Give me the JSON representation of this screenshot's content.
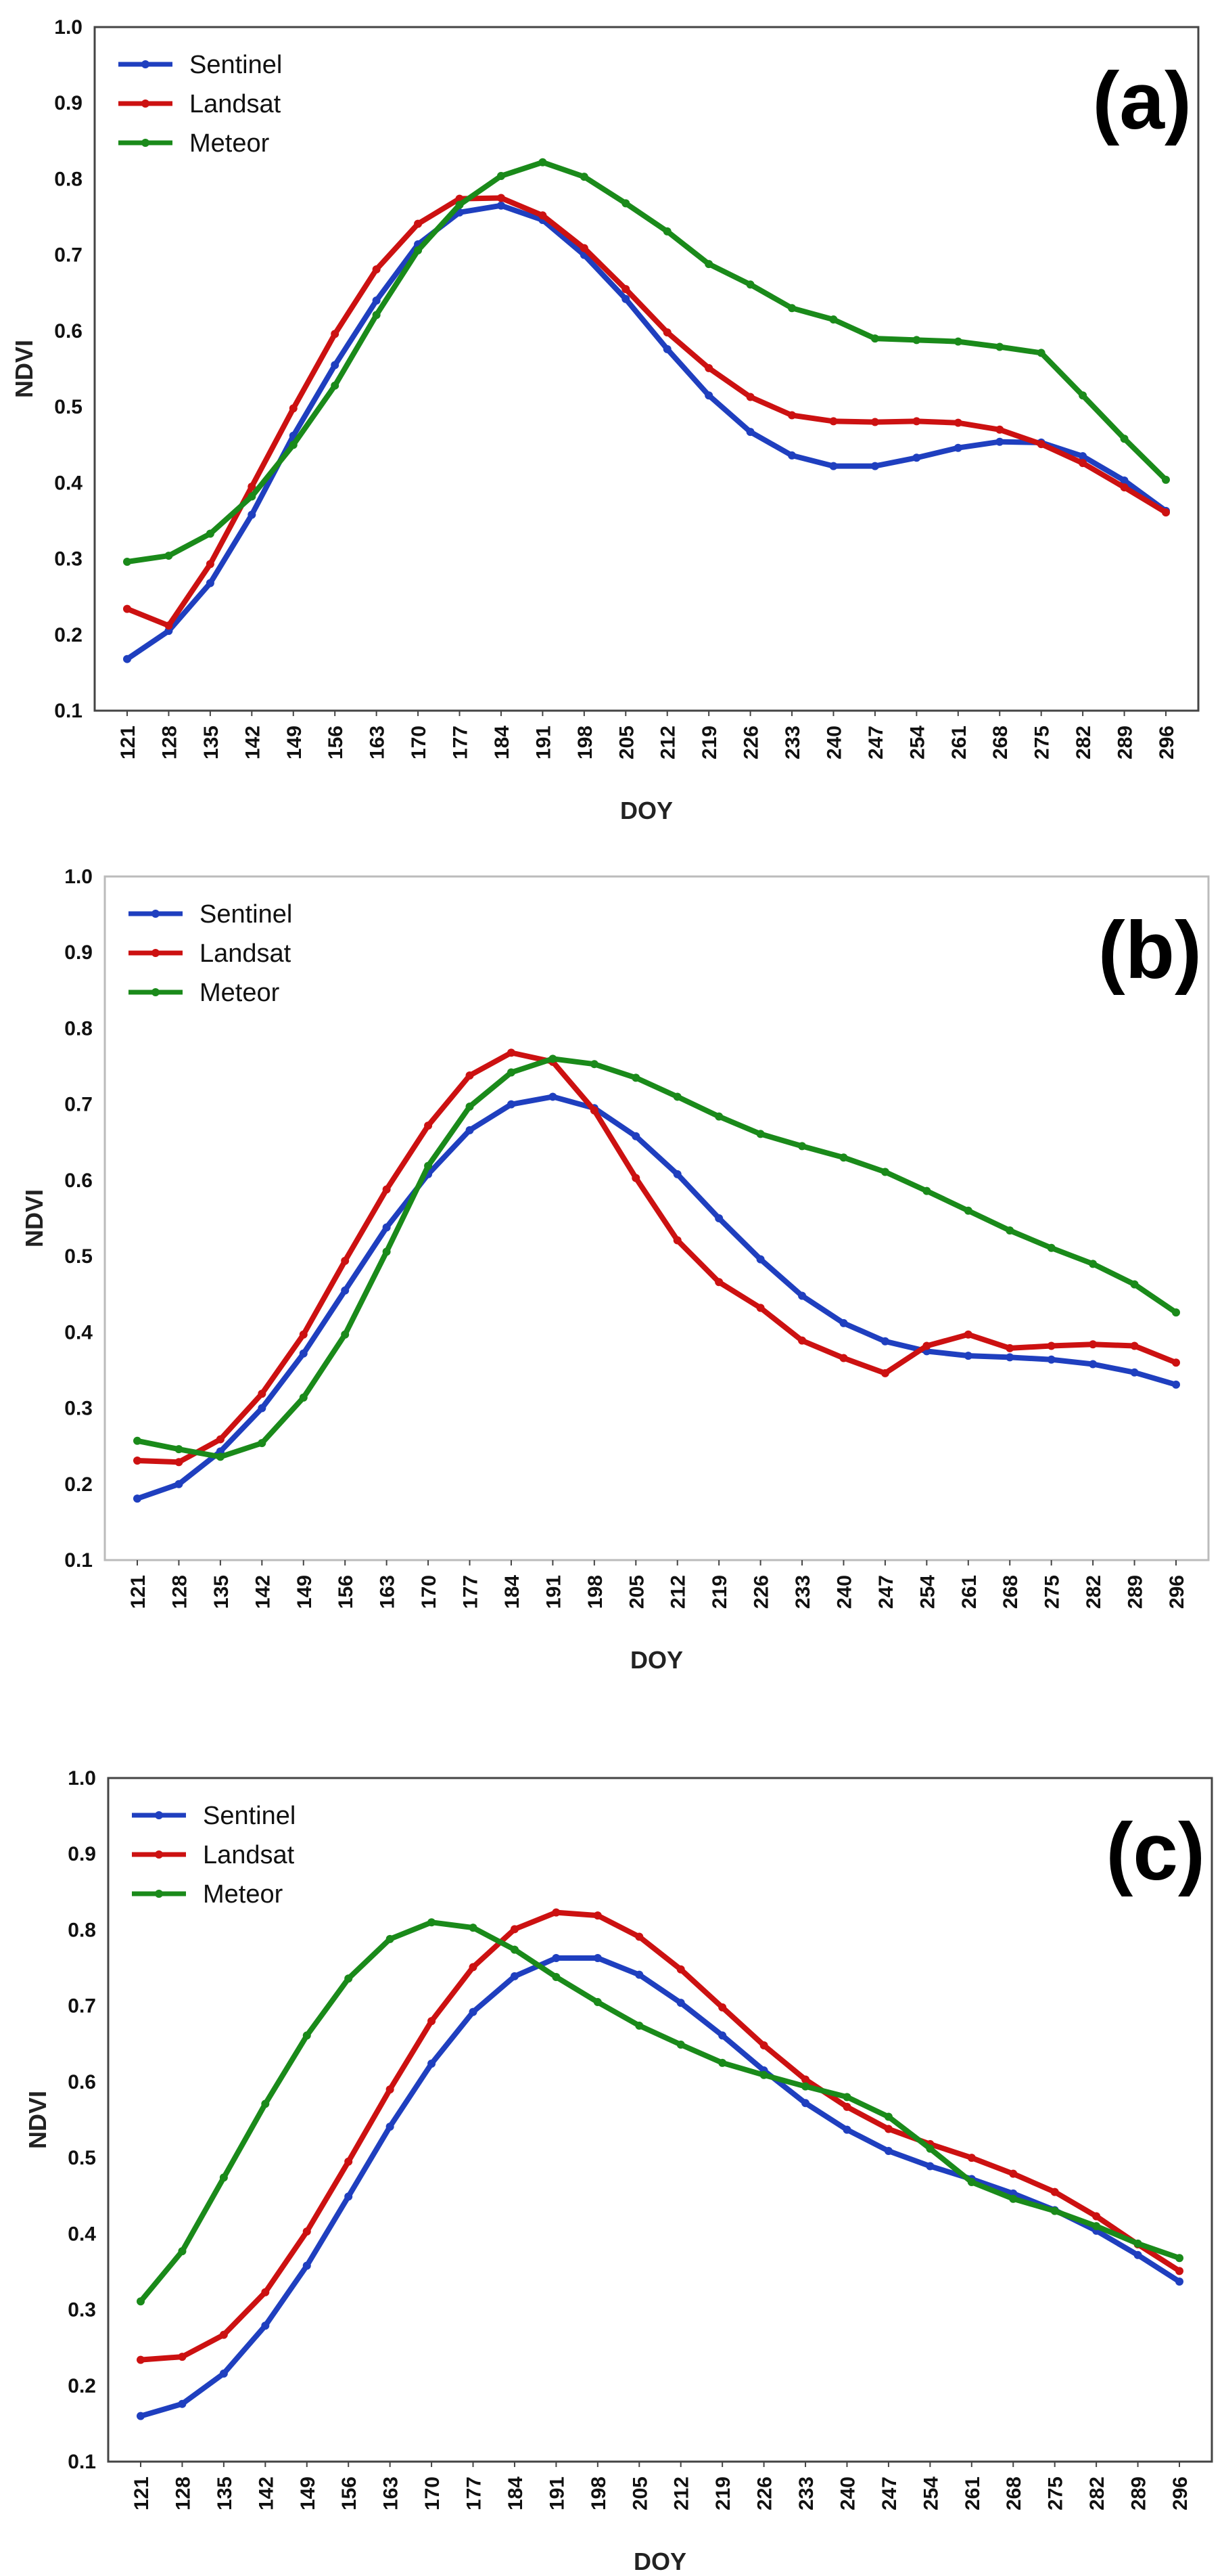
{
  "chart_data": [
    {
      "type": "line",
      "panel_label": "(a)",
      "xlabel": "DOY",
      "ylabel": "NDVI",
      "ylim": [
        0.1,
        1.0
      ],
      "yticks": [
        "0.1",
        "0.2",
        "0.3",
        "0.4",
        "0.5",
        "0.6",
        "0.7",
        "0.8",
        "0.9",
        "1.0"
      ],
      "legend": "top-left",
      "grid": false,
      "categories": [
        "121",
        "128",
        "135",
        "142",
        "149",
        "156",
        "163",
        "170",
        "177",
        "184",
        "191",
        "198",
        "205",
        "212",
        "219",
        "226",
        "233",
        "240",
        "247",
        "254",
        "261",
        "268",
        "275",
        "282",
        "289",
        "296"
      ],
      "series": [
        {
          "name": "Sentinel",
          "color": "#1f3fbf",
          "values": [
            0.168,
            0.205,
            0.268,
            0.358,
            0.462,
            0.555,
            0.64,
            0.714,
            0.756,
            0.765,
            0.746,
            0.7,
            0.642,
            0.576,
            0.515,
            0.467,
            0.436,
            0.422,
            0.422,
            0.433,
            0.446,
            0.454,
            0.453,
            0.435,
            0.403,
            0.363
          ]
        },
        {
          "name": "Landsat",
          "color": "#cc1111",
          "values": [
            0.234,
            0.212,
            0.293,
            0.395,
            0.498,
            0.596,
            0.681,
            0.741,
            0.774,
            0.775,
            0.752,
            0.709,
            0.655,
            0.598,
            0.551,
            0.513,
            0.489,
            0.481,
            0.48,
            0.481,
            0.479,
            0.47,
            0.451,
            0.426,
            0.394,
            0.361
          ]
        },
        {
          "name": "Meteor",
          "color": "#1a8a1a",
          "values": [
            0.296,
            0.304,
            0.333,
            0.382,
            0.45,
            0.528,
            0.621,
            0.706,
            0.766,
            0.804,
            0.822,
            0.803,
            0.768,
            0.731,
            0.688,
            0.661,
            0.63,
            0.615,
            0.59,
            0.588,
            0.586,
            0.579,
            0.571,
            0.515,
            0.458,
            0.404
          ]
        }
      ]
    },
    {
      "type": "line",
      "panel_label": "(b)",
      "xlabel": "DOY",
      "ylabel": "NDVI",
      "ylim": [
        0.1,
        1.0
      ],
      "yticks": [
        "0.1",
        "0.2",
        "0.3",
        "0.4",
        "0.5",
        "0.6",
        "0.7",
        "0.8",
        "0.9",
        "1.0"
      ],
      "legend": "top-left",
      "grid": false,
      "categories": [
        "121",
        "128",
        "135",
        "142",
        "149",
        "156",
        "163",
        "170",
        "177",
        "184",
        "191",
        "198",
        "205",
        "212",
        "219",
        "226",
        "233",
        "240",
        "247",
        "254",
        "261",
        "268",
        "275",
        "282",
        "289",
        "296"
      ],
      "series": [
        {
          "name": "Sentinel",
          "color": "#1f3fbf",
          "values": [
            0.181,
            0.2,
            0.243,
            0.3,
            0.372,
            0.455,
            0.538,
            0.608,
            0.666,
            0.7,
            0.71,
            0.695,
            0.658,
            0.608,
            0.55,
            0.496,
            0.448,
            0.412,
            0.388,
            0.375,
            0.369,
            0.367,
            0.364,
            0.358,
            0.347,
            0.331
          ]
        },
        {
          "name": "Landsat",
          "color": "#cc1111",
          "values": [
            0.231,
            0.229,
            0.259,
            0.319,
            0.397,
            0.494,
            0.588,
            0.672,
            0.738,
            0.768,
            0.756,
            0.692,
            0.603,
            0.521,
            0.466,
            0.432,
            0.389,
            0.366,
            0.346,
            0.382,
            0.397,
            0.379,
            0.382,
            0.384,
            0.382,
            0.36
          ]
        },
        {
          "name": "Meteor",
          "color": "#1a8a1a",
          "values": [
            0.257,
            0.246,
            0.236,
            0.254,
            0.314,
            0.397,
            0.506,
            0.619,
            0.697,
            0.742,
            0.76,
            0.753,
            0.735,
            0.71,
            0.684,
            0.661,
            0.645,
            0.63,
            0.611,
            0.586,
            0.56,
            0.534,
            0.511,
            0.49,
            0.463,
            0.426
          ]
        }
      ]
    },
    {
      "type": "line",
      "panel_label": "(c)",
      "xlabel": "DOY",
      "ylabel": "NDVI",
      "ylim": [
        0.1,
        1.0
      ],
      "yticks": [
        "0.1",
        "0.2",
        "0.3",
        "0.4",
        "0.5",
        "0.6",
        "0.7",
        "0.8",
        "0.9",
        "1.0"
      ],
      "legend": "top-left",
      "grid": false,
      "categories": [
        "121",
        "128",
        "135",
        "142",
        "149",
        "156",
        "163",
        "170",
        "177",
        "184",
        "191",
        "198",
        "205",
        "212",
        "219",
        "226",
        "233",
        "240",
        "247",
        "254",
        "261",
        "268",
        "275",
        "282",
        "289",
        "296"
      ],
      "series": [
        {
          "name": "Sentinel",
          "color": "#1f3fbf",
          "values": [
            0.16,
            0.176,
            0.216,
            0.279,
            0.358,
            0.449,
            0.541,
            0.624,
            0.692,
            0.739,
            0.763,
            0.763,
            0.741,
            0.704,
            0.661,
            0.615,
            0.572,
            0.537,
            0.509,
            0.489,
            0.472,
            0.453,
            0.431,
            0.404,
            0.372,
            0.337
          ]
        },
        {
          "name": "Landsat",
          "color": "#cc1111",
          "values": [
            0.234,
            0.238,
            0.267,
            0.323,
            0.403,
            0.495,
            0.59,
            0.68,
            0.751,
            0.801,
            0.823,
            0.819,
            0.791,
            0.748,
            0.698,
            0.648,
            0.603,
            0.567,
            0.538,
            0.518,
            0.5,
            0.479,
            0.455,
            0.423,
            0.386,
            0.351
          ]
        },
        {
          "name": "Meteor",
          "color": "#1a8a1a",
          "values": [
            0.311,
            0.377,
            0.474,
            0.571,
            0.661,
            0.736,
            0.788,
            0.81,
            0.803,
            0.774,
            0.738,
            0.705,
            0.674,
            0.649,
            0.625,
            0.609,
            0.594,
            0.58,
            0.554,
            0.512,
            0.468,
            0.446,
            0.43,
            0.41,
            0.387,
            0.368
          ]
        }
      ]
    }
  ]
}
